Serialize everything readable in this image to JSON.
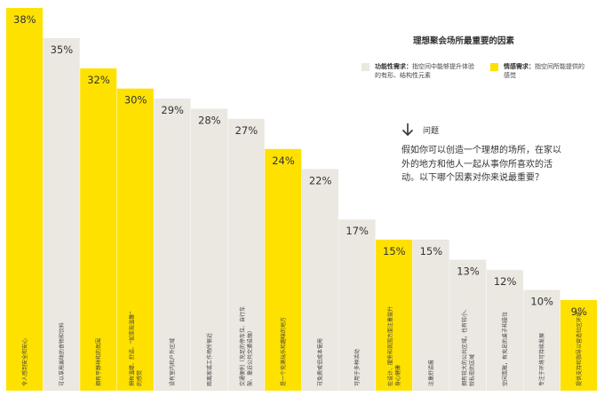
{
  "chart_data": {
    "type": "bar",
    "title": "理想聚会场所最重要的因素",
    "categories": [
      "令人感到安全和安心",
      "可以享用美味的食物和饮料",
      "拥有平静祥和的氛围",
      "拥有温暖、舒适、“如家般温馨”的感觉",
      "设有室内和户外区域",
      "距离家或工作场所很近",
      "交通便利（充足的停车位、自行车架、靠近公共交通设施）",
      "是一个充满玩乐和趣味的地方",
      "可免费或低成本使用",
      "可用于多种活动",
      "在设计、服务和氛围方面注重提升身心健康",
      "注重舒适度",
      "拥有较大的公共区域，也有较小、较私密的区域",
      "空间宽敞，有充足的桌子和座位",
      "专注于环境可持续发展",
      "提供支持和指导以营造社区环境"
    ],
    "values": [
      38,
      35,
      32,
      30,
      29,
      28,
      27,
      24,
      22,
      17,
      15,
      15,
      13,
      12,
      10,
      9
    ],
    "value_labels": [
      "38%",
      "35%",
      "32%",
      "30%",
      "29%",
      "28%",
      "27%",
      "24%",
      "22%",
      "17%",
      "15%",
      "15%",
      "13%",
      "12%",
      "10%",
      "9%"
    ],
    "groups": [
      "emotional",
      "functional",
      "emotional",
      "emotional",
      "functional",
      "functional",
      "functional",
      "emotional",
      "functional",
      "functional",
      "emotional",
      "functional",
      "functional",
      "functional",
      "functional",
      "emotional"
    ],
    "colors": {
      "functional": "#ebe7e1",
      "emotional": "#ffe100"
    },
    "ylim": [
      0,
      38
    ]
  },
  "legend": {
    "title": "理想聚会场所最重要的因素",
    "functional": {
      "name": "功能性需求：",
      "desc": "指空间中能够提升体验的有形、结构性元素"
    },
    "emotional": {
      "name": "情感需求：",
      "desc": "指空间所能提供的感觉"
    }
  },
  "question": {
    "label": "问题",
    "text": "假如你可以创造一个理想的场所，在家以外的地方和他人一起从事你所喜欢的活动。以下哪个因素对你来说最重要？",
    "arrow_icon": "arrow-down-icon"
  }
}
